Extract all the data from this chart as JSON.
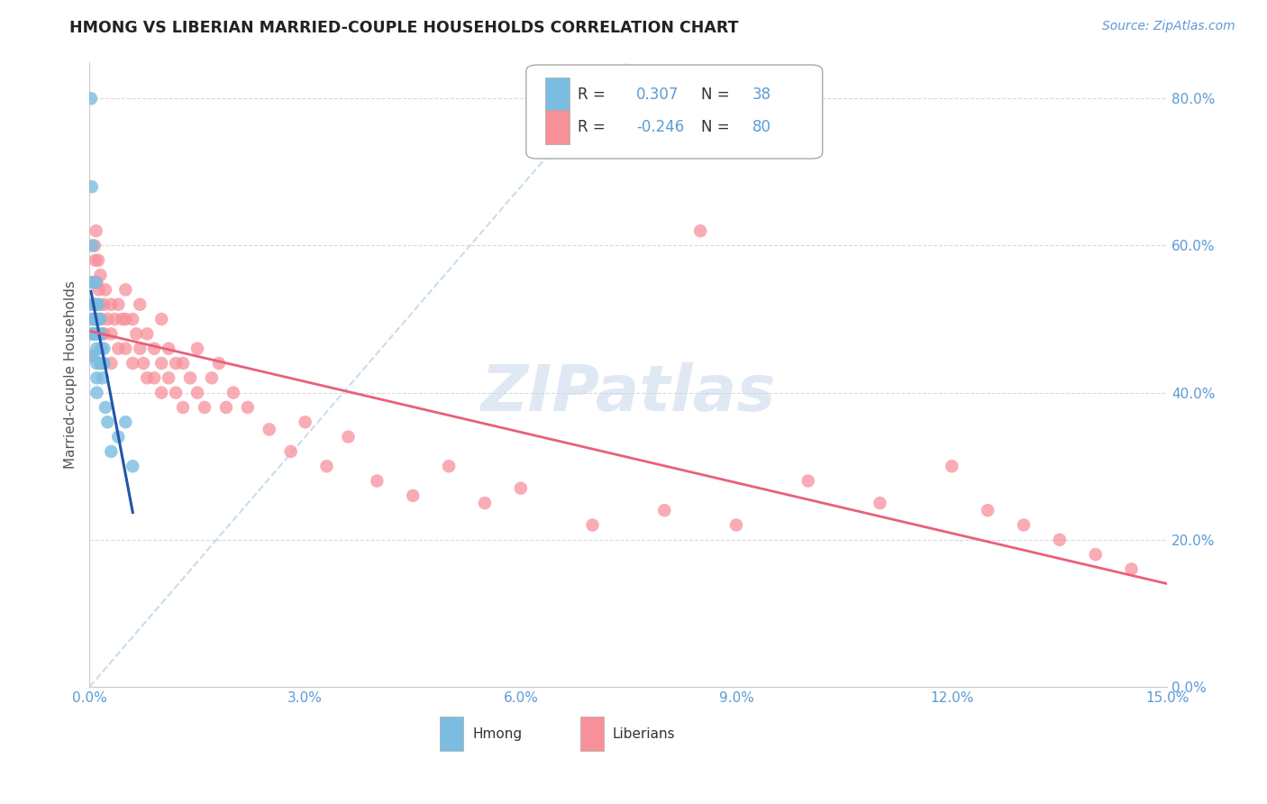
{
  "title": "HMONG VS LIBERIAN MARRIED-COUPLE HOUSEHOLDS CORRELATION CHART",
  "source": "Source: ZipAtlas.com",
  "ylabel": "Married-couple Households",
  "xmin": 0.0,
  "xmax": 0.15,
  "ymin": 0.0,
  "ymax": 0.85,
  "yticks": [
    0.0,
    0.2,
    0.4,
    0.6,
    0.8
  ],
  "xticks": [
    0.0,
    0.03,
    0.06,
    0.09,
    0.12,
    0.15
  ],
  "hmong_color": "#7bbde0",
  "liberian_color": "#f8909a",
  "hmong_line_color": "#2255aa",
  "liberian_line_color": "#e8607a",
  "ref_line_color": "#c0d8e8",
  "axis_color": "#5b9bd5",
  "background_color": "#ffffff",
  "grid_color": "#d0d0d0",
  "hmong_x": [
    0.0002,
    0.0003,
    0.0003,
    0.0004,
    0.0004,
    0.0005,
    0.0005,
    0.0005,
    0.0006,
    0.0006,
    0.0007,
    0.0007,
    0.0008,
    0.0008,
    0.0009,
    0.0009,
    0.001,
    0.001,
    0.001,
    0.001,
    0.001,
    0.0012,
    0.0012,
    0.0013,
    0.0014,
    0.0015,
    0.0015,
    0.0016,
    0.0017,
    0.0018,
    0.002,
    0.002,
    0.0022,
    0.0025,
    0.003,
    0.004,
    0.005,
    0.006
  ],
  "hmong_y": [
    0.8,
    0.68,
    0.55,
    0.6,
    0.52,
    0.5,
    0.48,
    0.45,
    0.5,
    0.48,
    0.52,
    0.48,
    0.52,
    0.5,
    0.55,
    0.5,
    0.48,
    0.46,
    0.44,
    0.42,
    0.4,
    0.52,
    0.48,
    0.5,
    0.5,
    0.48,
    0.44,
    0.46,
    0.44,
    0.42,
    0.46,
    0.44,
    0.38,
    0.36,
    0.32,
    0.34,
    0.36,
    0.3
  ],
  "liberian_x": [
    0.0002,
    0.0003,
    0.0004,
    0.0005,
    0.0006,
    0.0007,
    0.0008,
    0.0009,
    0.001,
    0.001,
    0.0012,
    0.0013,
    0.0014,
    0.0015,
    0.0016,
    0.0018,
    0.002,
    0.002,
    0.0022,
    0.0025,
    0.003,
    0.003,
    0.003,
    0.0035,
    0.004,
    0.004,
    0.0045,
    0.005,
    0.005,
    0.005,
    0.006,
    0.006,
    0.0065,
    0.007,
    0.007,
    0.0075,
    0.008,
    0.008,
    0.009,
    0.009,
    0.01,
    0.01,
    0.01,
    0.011,
    0.011,
    0.012,
    0.012,
    0.013,
    0.013,
    0.014,
    0.015,
    0.015,
    0.016,
    0.017,
    0.018,
    0.019,
    0.02,
    0.022,
    0.025,
    0.028,
    0.03,
    0.033,
    0.036,
    0.04,
    0.045,
    0.05,
    0.055,
    0.06,
    0.07,
    0.08,
    0.085,
    0.09,
    0.1,
    0.11,
    0.12,
    0.125,
    0.13,
    0.135,
    0.14,
    0.145
  ],
  "liberian_y": [
    0.45,
    0.48,
    0.5,
    0.52,
    0.55,
    0.6,
    0.58,
    0.62,
    0.55,
    0.5,
    0.58,
    0.54,
    0.52,
    0.56,
    0.5,
    0.48,
    0.52,
    0.48,
    0.54,
    0.5,
    0.52,
    0.48,
    0.44,
    0.5,
    0.52,
    0.46,
    0.5,
    0.54,
    0.5,
    0.46,
    0.5,
    0.44,
    0.48,
    0.52,
    0.46,
    0.44,
    0.48,
    0.42,
    0.46,
    0.42,
    0.5,
    0.44,
    0.4,
    0.46,
    0.42,
    0.44,
    0.4,
    0.44,
    0.38,
    0.42,
    0.46,
    0.4,
    0.38,
    0.42,
    0.44,
    0.38,
    0.4,
    0.38,
    0.35,
    0.32,
    0.36,
    0.3,
    0.34,
    0.28,
    0.26,
    0.3,
    0.25,
    0.27,
    0.22,
    0.24,
    0.62,
    0.22,
    0.28,
    0.25,
    0.3,
    0.24,
    0.22,
    0.2,
    0.18,
    0.16
  ]
}
